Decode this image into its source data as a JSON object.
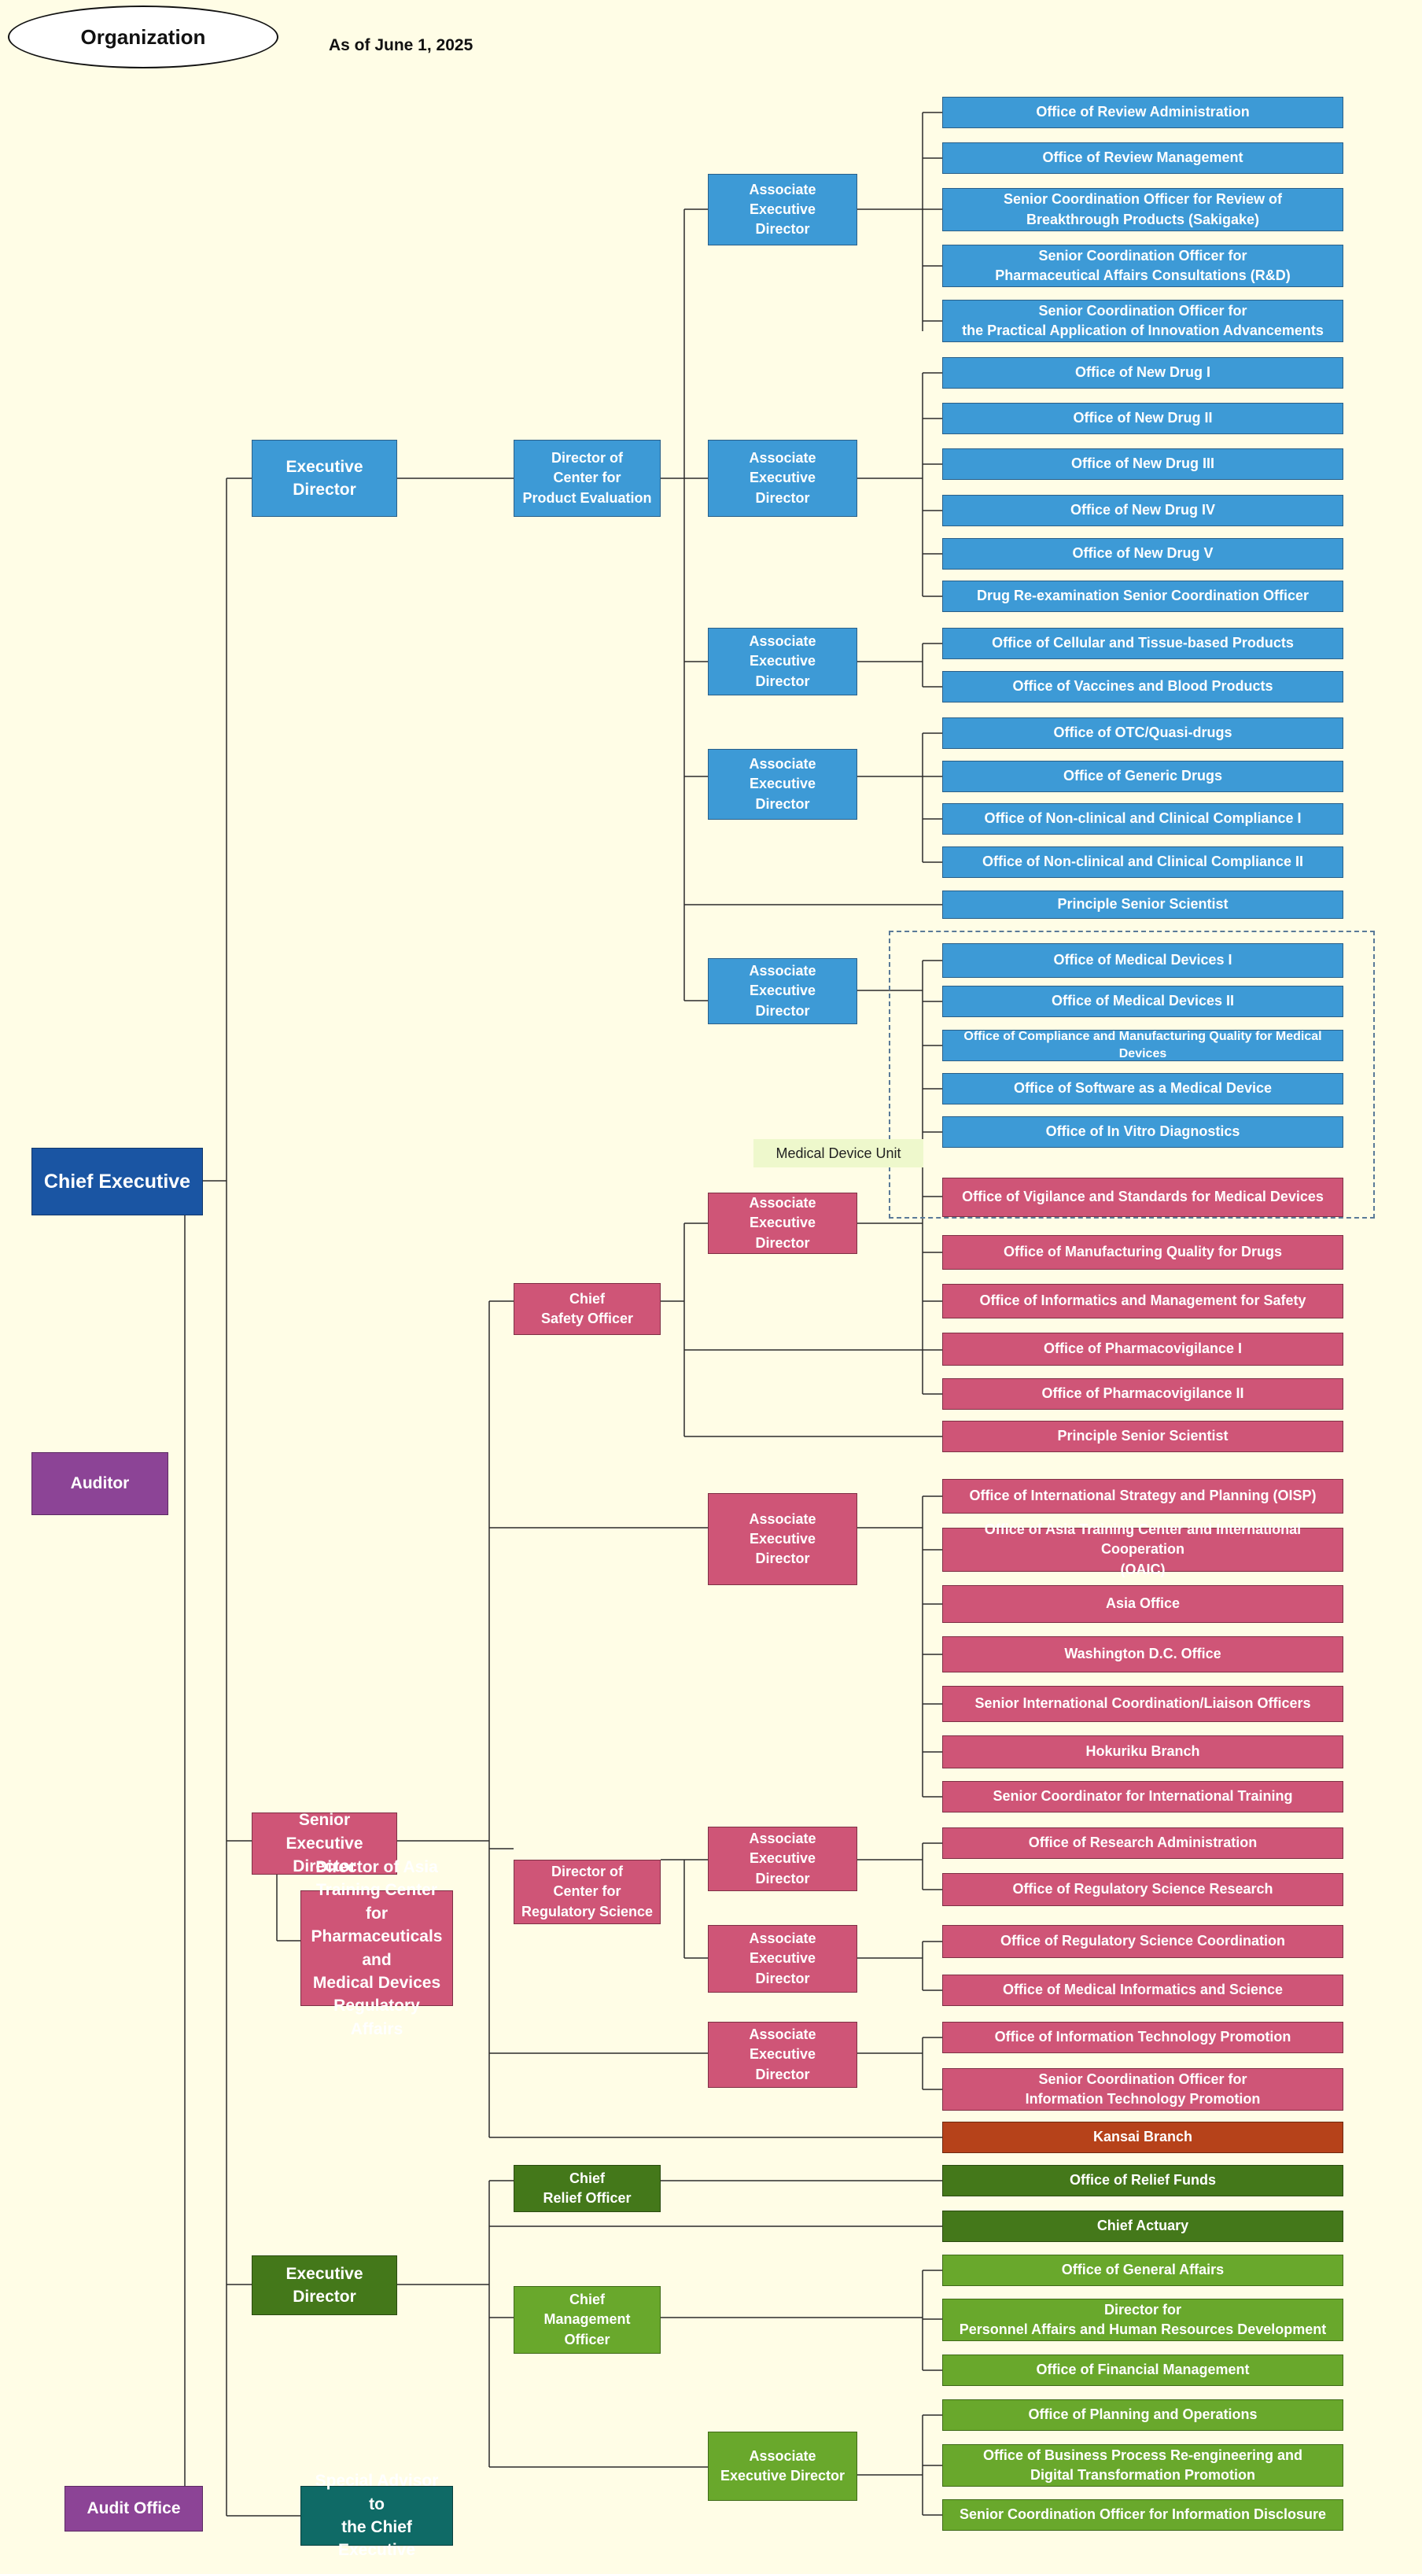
{
  "header": {
    "title": "Organization",
    "as_of": "As of June 1, 2025"
  },
  "unit_label": "Medical Device Unit",
  "top": {
    "chief_executive": "Chief Executive",
    "auditor": "Auditor",
    "audit_office": "Audit Office",
    "exec_dir_1": "Executive Director",
    "senior_exec_dir": "Senior\nExecutive Director",
    "asia_center_dir": "Director of Asia\nTraining Center for\nPharmaceuticals and\nMedical Devices\nRegulatory Affairs",
    "exec_dir_3": "Executive Director",
    "special_advisor": "Special Advisor to\nthe Chief Executive"
  },
  "mid": {
    "dir_product_eval": "Director of\nCenter for\nProduct Evaluation",
    "chief_safety": "Chief\nSafety Officer",
    "dir_reg_science": "Director of\nCenter for\nRegulatory Science",
    "chief_relief": "Chief\nRelief Officer",
    "chief_mgmt": "Chief\nManagement Officer"
  },
  "associate": {
    "label": "Associate\nExecutive\nDirector",
    "label_two_line": "Associate\nExecutive Director"
  },
  "offices": {
    "review_admin": "Office of Review Administration",
    "review_mgmt": "Office of Review Management",
    "sakigake": "Senior Coordination Officer for Review of\nBreakthrough Products  (Sakigake)",
    "rnd": "Senior Coordination Officer for\nPharmaceutical Affairs Consultations (R&D)",
    "innovation": "Senior Coordination Officer for\nthe Practical Application of Innovation Advancements",
    "new_drug_1": "Office of New Drug I",
    "new_drug_2": "Office of New Drug II",
    "new_drug_3": "Office of New Drug III",
    "new_drug_4": "Office of New Drug IV",
    "new_drug_5": "Office of New Drug V",
    "drug_reexam": "Drug Re-examination Senior Coordination Officer",
    "cellular": "Office of Cellular and Tissue-based Products",
    "vaccines": "Office of Vaccines and Blood Products",
    "otc": "Office of OTC/Quasi-drugs",
    "generic": "Office of Generic Drugs",
    "nonclinical_1": "Office of Non-clinical and Clinical Compliance I",
    "nonclinical_2": "Office of Non-clinical and Clinical Compliance II",
    "principle_1": "Principle  Senior Scientist",
    "med_dev_1": "Office of Medical Devices I",
    "med_dev_2": "Office of Medical Devices II",
    "compliance_md": "Office of Compliance and Manufacturing Quality for Medical Devices",
    "software_md": "Office of Software as a Medical Device",
    "ivd": "Office of In Vitro Diagnostics",
    "vigilance": "Office of Vigilance and Standards for Medical Devices",
    "mfg_quality": "Office of Manufacturing Quality for Drugs",
    "informatics_safety": "Office of Informatics and Management for Safety",
    "pv_1": "Office of Pharmacovigilance I",
    "pv_2": "Office of Pharmacovigilance II",
    "principle_2": "Principle  Senior Scientist",
    "oisp": "Office of International Strategy and Planning (OISP)",
    "oaic": "Office of Asia Training Center and International Cooperation\n(OAIC)",
    "asia_office": "Asia Office",
    "washington": "Washington D.C. Office",
    "liaison": "Senior International Coordination/Liaison Officers",
    "hokuriku": "Hokuriku Branch",
    "intl_training": "Senior Coordinator for International Training",
    "research_admin": "Office of Research Administration",
    "reg_sci_research": "Office of Regulatory  Science Research",
    "reg_sci_coord": "Office of Regulatory Science Coordination",
    "med_informatics": "Office of Medical Informatics and Science",
    "it_promotion": "Office of Information Technology Promotion",
    "it_coord": "Senior Coordination Officer for\nInformation Technology Promotion",
    "kansai": "Kansai Branch",
    "relief_funds": "Office of Relief Funds",
    "actuary": "Chief Actuary",
    "general_affairs": "Office of General Affairs",
    "personnel": "Director for\nPersonnel Affairs and Human Resources Development",
    "financial": "Office of Financial Management",
    "planning": "Office of Planning and Operations",
    "bpr": "Office of Business Process Re-engineering and\nDigital Transformation Promotion",
    "disclosure": "Senior Coordination Officer for Information Disclosure"
  },
  "colors": {
    "background": "#fffde6",
    "review_blue": "#3d9ad6",
    "safety_pink": "#cf5577",
    "dark_green": "#44781a",
    "light_green": "#69a82c",
    "purple": "#8c4496",
    "navy": "#1a55a3",
    "teal": "#0f6a66",
    "kansai_red": "#b6421a"
  }
}
